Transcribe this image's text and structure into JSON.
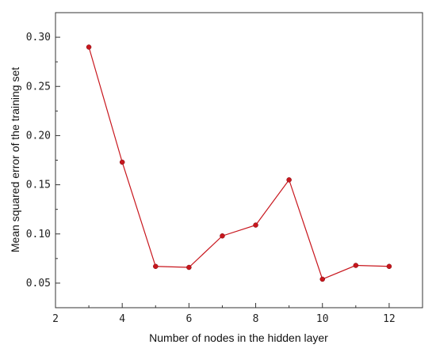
{
  "chart_data": {
    "type": "line",
    "title": "",
    "xlabel": "Number of nodes in the hidden layer",
    "ylabel": "Mean squared error of the training set",
    "xlim": [
      2,
      13
    ],
    "ylim": [
      0.025,
      0.325
    ],
    "xticks": [
      2,
      4,
      6,
      8,
      10,
      12
    ],
    "xtick_labels": [
      "2",
      "4",
      "6",
      "8",
      "10",
      "12"
    ],
    "yticks": [
      0.05,
      0.1,
      0.15,
      0.2,
      0.25,
      0.3
    ],
    "ytick_labels": [
      "0.05",
      "0.10",
      "0.15",
      "0.20",
      "0.25",
      "0.30"
    ],
    "grid": false,
    "series": [
      {
        "color": "#c8161d",
        "x": [
          3,
          4,
          5,
          6,
          7,
          8,
          9,
          10,
          11,
          12
        ],
        "y": [
          0.29,
          0.173,
          0.067,
          0.066,
          0.098,
          0.109,
          0.155,
          0.054,
          0.068,
          0.067
        ]
      }
    ]
  }
}
